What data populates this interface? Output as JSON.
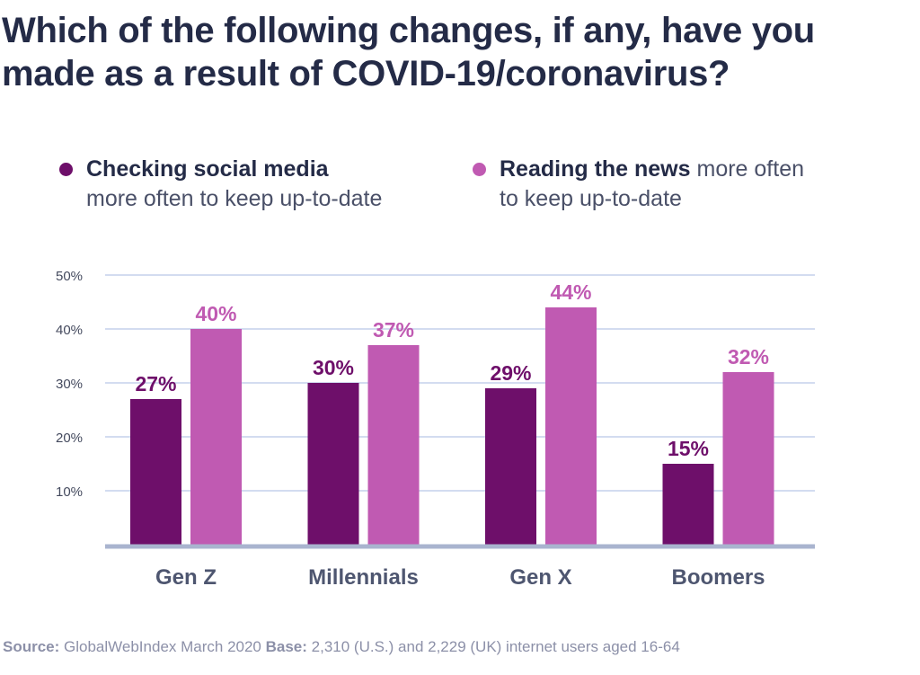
{
  "title_line1": "Which of the following changes, if any, have you",
  "title_line2": "made as a result of COVID-19/coronavirus?",
  "legend": [
    {
      "bold": "Checking social media",
      "rest_line1": "",
      "rest_line2": "more often to keep up-to-date",
      "color": "#6e0f6a"
    },
    {
      "bold": "Reading the news",
      "rest_line1": " more often",
      "rest_line2": "to keep up-to-date",
      "color": "#c05ab2"
    }
  ],
  "source": {
    "label": "Source:",
    "text": " GlobalWebIndex March 2020 ",
    "base_label": "Base:",
    "base_text": " 2,310 (U.S.) and 2,229 (UK) internet users aged 16-64"
  },
  "colors": {
    "series1": "#6e0f6a",
    "series2": "#c05ab2",
    "gridline": "#d3dcf0",
    "axis": "#a9b4cf",
    "category_text": "#4e5670",
    "tick_text": "#444a5e"
  },
  "chart_data": {
    "type": "bar",
    "categories": [
      "Gen Z",
      "Millennials",
      "Gen X",
      "Boomers"
    ],
    "series": [
      {
        "name": "Checking social media more often to keep up-to-date",
        "values": [
          27,
          30,
          29,
          15
        ],
        "labels": [
          "27%",
          "30%",
          "29%",
          "15%"
        ]
      },
      {
        "name": "Reading the news more often to keep up-to-date",
        "values": [
          40,
          37,
          44,
          32
        ],
        "labels": [
          "40%",
          "37%",
          "44%",
          "32%"
        ]
      }
    ],
    "yticks": [
      10,
      20,
      30,
      40,
      50
    ],
    "ytick_labels": [
      "10%",
      "20%",
      "30%",
      "40%",
      "50%"
    ],
    "ylim": [
      0,
      50
    ],
    "grid": true
  }
}
